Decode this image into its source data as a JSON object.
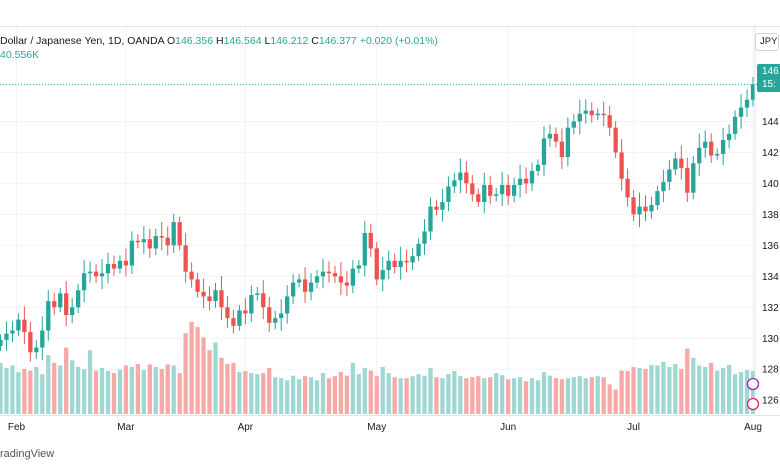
{
  "header": {
    "symbol_line": "Dollar / Japanese Yen, 1D, OANDA",
    "open_label": "O",
    "open": "146.356",
    "high_label": "H",
    "high": "146.564",
    "low_label": "L",
    "low": "146.212",
    "close_label": "C",
    "close": "146.377",
    "change": "+0.020 (+0.01%)",
    "volume": "40.556K"
  },
  "currency_button": "JPY",
  "last_price": {
    "value": "146",
    "countdown": "15:"
  },
  "footer": {
    "brand": "radingView"
  },
  "colors": {
    "up": "#26a69a",
    "down": "#ef5350",
    "up_volume": "#9fd8d2",
    "down_volume": "#f7a9a7"
  },
  "chart_data": {
    "type": "candlestick",
    "x_labels": [
      "Feb",
      "Mar",
      "Apr",
      "May",
      "Jun",
      "Jul",
      "Aug"
    ],
    "y_ticks": [
      126,
      128,
      130,
      132,
      134,
      136,
      138,
      140,
      142,
      144
    ],
    "ylim": [
      125.4,
      147.0
    ],
    "last_close": 146.377,
    "closes": [
      129.9,
      130.3,
      130.5,
      131.2,
      130.4,
      129.1,
      129.4,
      130.5,
      132.4,
      132.0,
      132.9,
      131.5,
      132.0,
      133.1,
      134.2,
      134.3,
      134.0,
      134.2,
      134.8,
      134.5,
      135.0,
      134.7,
      136.3,
      136.2,
      136.4,
      135.8,
      136.6,
      136.5,
      136.0,
      137.5,
      136.0,
      134.3,
      133.8,
      133.0,
      132.7,
      132.4,
      133.1,
      132.0,
      131.3,
      130.8,
      131.8,
      131.6,
      132.8,
      132.9,
      132.0,
      131.0,
      131.3,
      131.6,
      132.7,
      133.6,
      133.8,
      133.0,
      133.6,
      134.0,
      134.3,
      134.2,
      134.0,
      133.6,
      133.4,
      134.5,
      134.7,
      136.8,
      135.8,
      133.8,
      134.4,
      135.0,
      134.6,
      135.0,
      134.9,
      135.3,
      136.1,
      136.9,
      138.5,
      138.3,
      138.8,
      139.8,
      140.2,
      140.7,
      140.0,
      139.3,
      138.8,
      139.9,
      139.2,
      139.3,
      139.9,
      139.2,
      139.9,
      140.3,
      140.0,
      140.8,
      141.2,
      142.9,
      143.2,
      142.7,
      141.7,
      143.6,
      144.0,
      144.5,
      144.7,
      144.4,
      144.5,
      144.4,
      143.6,
      142.0,
      140.3,
      139.1,
      138.0,
      138.5,
      138.2,
      138.6,
      139.5,
      140.1,
      140.9,
      141.6,
      141.0,
      139.4,
      141.3,
      142.3,
      142.7,
      141.8,
      141.9,
      142.8,
      143.2,
      144.3,
      144.9,
      145.4,
      146.4
    ],
    "volumes": [
      100,
      90,
      95,
      82,
      88,
      85,
      92,
      78,
      115,
      100,
      95,
      130,
      105,
      92,
      88,
      125,
      85,
      90,
      84,
      80,
      87,
      95,
      92,
      98,
      86,
      97,
      92,
      88,
      97,
      95,
      80,
      158,
      180,
      170,
      150,
      125,
      140,
      110,
      98,
      100,
      82,
      84,
      80,
      78,
      80,
      90,
      72,
      70,
      66,
      75,
      68,
      74,
      72,
      66,
      80,
      70,
      74,
      82,
      75,
      100,
      78,
      90,
      85,
      74,
      92,
      80,
      72,
      70,
      70,
      74,
      78,
      75,
      90,
      72,
      70,
      78,
      84,
      74,
      70,
      72,
      74,
      70,
      72,
      80,
      76,
      68,
      70,
      72,
      64,
      70,
      66,
      82,
      75,
      70,
      68,
      70,
      72,
      74,
      70,
      72,
      74,
      72,
      58,
      48,
      85,
      84,
      92,
      90,
      88,
      96,
      95,
      102,
      92,
      98,
      88,
      128,
      110,
      95,
      92,
      100,
      85,
      90,
      96,
      78,
      82,
      86,
      84
    ]
  }
}
